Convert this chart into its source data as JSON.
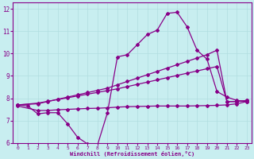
{
  "xlabel": "Windchill (Refroidissement éolien,°C)",
  "bg_color": "#c8eef0",
  "line_color": "#880088",
  "xlim": [
    -0.5,
    23.5
  ],
  "ylim": [
    6,
    12.3
  ],
  "yticks": [
    6,
    7,
    8,
    9,
    10,
    11,
    12
  ],
  "xticks": [
    0,
    1,
    2,
    3,
    4,
    5,
    6,
    7,
    8,
    9,
    10,
    11,
    12,
    13,
    14,
    15,
    16,
    17,
    18,
    19,
    20,
    21,
    22,
    23
  ],
  "line1_x": [
    0,
    1,
    2,
    3,
    4,
    5,
    6,
    7,
    8,
    9,
    10,
    11,
    12,
    13,
    14,
    15,
    16,
    17,
    18,
    19,
    20,
    21,
    22,
    23
  ],
  "line1_y": [
    7.7,
    7.65,
    7.3,
    7.35,
    7.35,
    6.85,
    6.25,
    5.95,
    5.9,
    7.35,
    9.85,
    9.95,
    10.4,
    10.85,
    11.05,
    11.8,
    11.85,
    11.2,
    10.15,
    9.75,
    8.3,
    8.05,
    7.9,
    7.85
  ],
  "line2_x": [
    0,
    2,
    3,
    4,
    5,
    6,
    7,
    8,
    9,
    10,
    11,
    12,
    13,
    14,
    15,
    16,
    17,
    18,
    19,
    20,
    21,
    22,
    23
  ],
  "line2_y": [
    7.7,
    7.75,
    7.85,
    7.95,
    8.05,
    8.15,
    8.25,
    8.35,
    8.45,
    8.6,
    8.75,
    8.9,
    9.05,
    9.2,
    9.35,
    9.5,
    9.65,
    9.8,
    9.95,
    10.15,
    7.85,
    7.85,
    7.9
  ],
  "line3_x": [
    0,
    2,
    3,
    4,
    5,
    6,
    7,
    8,
    9,
    10,
    11,
    12,
    13,
    14,
    15,
    16,
    17,
    18,
    19,
    20,
    21,
    22,
    23
  ],
  "line3_y": [
    7.7,
    7.78,
    7.86,
    7.94,
    8.02,
    8.1,
    8.18,
    8.26,
    8.34,
    8.42,
    8.52,
    8.62,
    8.72,
    8.82,
    8.92,
    9.02,
    9.12,
    9.22,
    9.32,
    9.42,
    7.85,
    7.85,
    7.9
  ],
  "line4_x": [
    0,
    2,
    3,
    4,
    5,
    6,
    7,
    8,
    9,
    10,
    11,
    12,
    13,
    14,
    15,
    16,
    17,
    18,
    19,
    20,
    21,
    22,
    23
  ],
  "line4_y": [
    7.65,
    7.45,
    7.45,
    7.48,
    7.5,
    7.52,
    7.54,
    7.55,
    7.57,
    7.6,
    7.62,
    7.63,
    7.64,
    7.65,
    7.65,
    7.65,
    7.65,
    7.66,
    7.67,
    7.68,
    7.7,
    7.75,
    7.85
  ],
  "grid_color": "#b0dde0",
  "marker": "D",
  "markersize": 2.0
}
